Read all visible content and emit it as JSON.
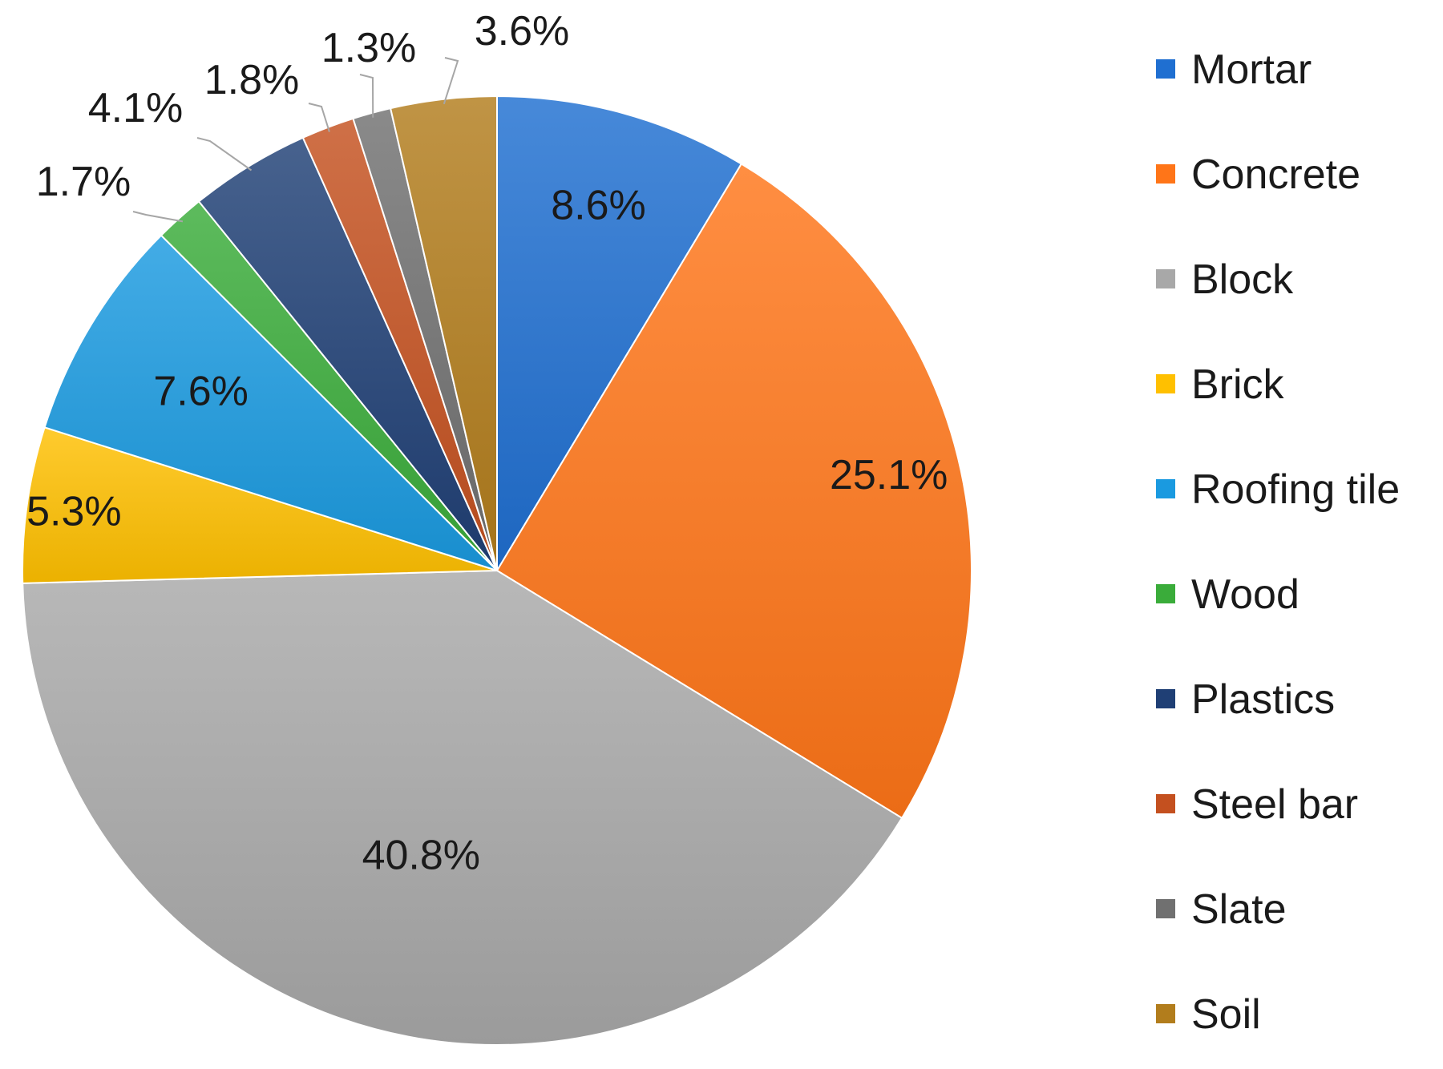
{
  "chart_data": {
    "type": "pie",
    "title": "",
    "start_angle_deg": 0,
    "direction": "clockwise",
    "legend_position": "right",
    "series": [
      {
        "name": "",
        "slices": [
          {
            "label": "Mortar",
            "value": 8.6,
            "display": "8.6%",
            "color": "#1f6fd1",
            "label_position": "inside"
          },
          {
            "label": "Concrete",
            "value": 25.1,
            "display": "25.1%",
            "color": "#ff7518",
            "label_position": "inside"
          },
          {
            "label": "Block",
            "value": 40.8,
            "display": "40.8%",
            "color": "#a8a8a8",
            "label_position": "inside"
          },
          {
            "label": "Brick",
            "value": 5.3,
            "display": "5.3%",
            "color": "#ffc000",
            "label_position": "inside"
          },
          {
            "label": "Roofing tile",
            "value": 7.6,
            "display": "7.6%",
            "color": "#1a9ae0",
            "label_position": "inside"
          },
          {
            "label": "Wood",
            "value": 1.7,
            "display": "1.7%",
            "color": "#3aac3a",
            "label_position": "outside"
          },
          {
            "label": "Plastics",
            "value": 4.1,
            "display": "4.1%",
            "color": "#1f3f75",
            "label_position": "outside"
          },
          {
            "label": "Steel bar",
            "value": 1.8,
            "display": "1.8%",
            "color": "#c4501f",
            "label_position": "outside"
          },
          {
            "label": "Slate",
            "value": 1.3,
            "display": "1.3%",
            "color": "#707070",
            "label_position": "outside"
          },
          {
            "label": "Soil",
            "value": 3.6,
            "display": "3.6%",
            "color": "#b27d1c",
            "label_position": "outside"
          }
        ]
      }
    ],
    "legend": [
      "Mortar",
      "Concrete",
      "Block",
      "Brick",
      "Roofing tile",
      "Wood",
      "Plastics",
      "Steel bar",
      "Slate",
      "Soil"
    ]
  }
}
